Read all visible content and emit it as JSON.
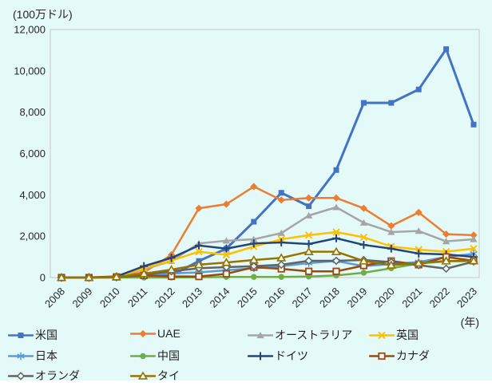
{
  "colors": {
    "background": "#E4FAF8",
    "plot_border": "#C6C6C6",
    "text": "#262626"
  },
  "chart_data": {
    "type": "line",
    "unit_label": "(100万ドル)",
    "x_axis_suffix_label": "(年)",
    "x": [
      2008,
      2009,
      2010,
      2011,
      2012,
      2013,
      2014,
      2015,
      2016,
      2017,
      2018,
      2019,
      2020,
      2021,
      2022,
      2023
    ],
    "ylim": [
      0,
      12000
    ],
    "y_ticks": [
      0,
      2000,
      4000,
      6000,
      8000,
      10000,
      12000
    ],
    "grid": false,
    "legend_position": "bottom",
    "series": [
      {
        "id": "usa",
        "name": "米国",
        "color": "#4472C4",
        "marker": "square",
        "line_width": 3,
        "values": [
          0,
          0,
          20,
          60,
          100,
          800,
          1400,
          2700,
          4100,
          3450,
          5200,
          8450,
          8450,
          9100,
          11050,
          7400
        ]
      },
      {
        "id": "uae",
        "name": "UAE",
        "color": "#ED7D31",
        "marker": "diamond",
        "line_width": 2.5,
        "values": [
          0,
          10,
          50,
          250,
          1100,
          3350,
          3550,
          4400,
          3750,
          3850,
          3850,
          3350,
          2500,
          3150,
          2100,
          2050
        ]
      },
      {
        "id": "australia",
        "name": "オーストラリア",
        "color": "#A5A5A5",
        "marker": "triangle",
        "line_width": 2.5,
        "values": [
          0,
          0,
          30,
          400,
          800,
          1650,
          1780,
          1850,
          2150,
          3000,
          3400,
          2650,
          2200,
          2250,
          1750,
          1850
        ]
      },
      {
        "id": "uk",
        "name": "英国",
        "color": "#FFC000",
        "marker": "x",
        "line_width": 2.5,
        "values": [
          0,
          0,
          30,
          450,
          820,
          1250,
          1100,
          1500,
          1850,
          2050,
          2200,
          1950,
          1500,
          1350,
          1250,
          1400
        ]
      },
      {
        "id": "japan",
        "name": "日本",
        "color": "#5B9BD5",
        "marker": "asterisk",
        "line_width": 2.5,
        "values": [
          0,
          0,
          10,
          100,
          200,
          250,
          350,
          450,
          550,
          700,
          800,
          550,
          650,
          750,
          1000,
          1150
        ]
      },
      {
        "id": "china",
        "name": "中国",
        "color": "#70AD47",
        "marker": "circle",
        "line_width": 2.5,
        "values": [
          0,
          0,
          0,
          0,
          0,
          10,
          30,
          30,
          30,
          50,
          100,
          230,
          450,
          680,
          780,
          800
        ]
      },
      {
        "id": "germany",
        "name": "ドイツ",
        "color": "#264478",
        "marker": "plus",
        "line_width": 2.5,
        "values": [
          0,
          0,
          50,
          550,
          950,
          1550,
          1400,
          1650,
          1700,
          1620,
          1900,
          1580,
          1400,
          1160,
          1120,
          1000
        ]
      },
      {
        "id": "canada",
        "name": "カナダ",
        "color": "#9E480E",
        "marker": "square-open",
        "line_width": 2.5,
        "values": [
          0,
          0,
          30,
          100,
          60,
          50,
          180,
          500,
          420,
          300,
          300,
          580,
          800,
          620,
          1000,
          810
        ]
      },
      {
        "id": "netherlands",
        "name": "オランダ",
        "color": "#636363",
        "marker": "diamond-open",
        "line_width": 2.5,
        "values": [
          0,
          0,
          20,
          150,
          300,
          450,
          500,
          550,
          620,
          810,
          810,
          850,
          750,
          600,
          430,
          770
        ]
      },
      {
        "id": "thailand",
        "name": "タイ",
        "color": "#997300",
        "marker": "triangle-open",
        "line_width": 2.5,
        "values": [
          0,
          0,
          30,
          190,
          380,
          620,
          730,
          850,
          950,
          1250,
          1250,
          800,
          600,
          700,
          800,
          810
        ]
      }
    ]
  }
}
